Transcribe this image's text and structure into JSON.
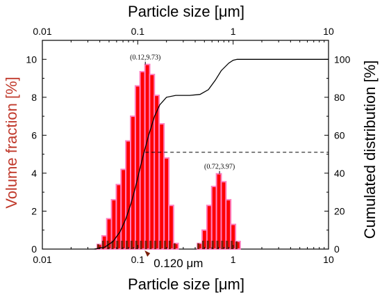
{
  "chart_data": {
    "type": "bar",
    "x_top_label": "Particle size [μm]",
    "x_bottom_label": "Particle size [μm]",
    "y_left_label": "Volume fraction [%]",
    "y_right_label": "Cumulated distribution [%]",
    "x_scale": "log",
    "x_range": [
      0.01,
      10
    ],
    "x_ticks": [
      0.01,
      0.1,
      1,
      10
    ],
    "x_tick_labels": [
      "0.01",
      "0.1",
      "1",
      "10"
    ],
    "y_left_range": [
      0,
      11
    ],
    "y_left_ticks": [
      0,
      2,
      4,
      6,
      8,
      10
    ],
    "y_right_range": [
      0,
      110
    ],
    "y_right_ticks": [
      0,
      20,
      40,
      60,
      80,
      100
    ],
    "grid": false,
    "bar_color": "#ff0000",
    "bar_edge_color": "#7a1f0a",
    "bars": [
      {
        "x": 0.0398,
        "y": 0.25
      },
      {
        "x": 0.0447,
        "y": 0.7
      },
      {
        "x": 0.0501,
        "y": 1.6
      },
      {
        "x": 0.0562,
        "y": 2.6
      },
      {
        "x": 0.0631,
        "y": 3.4
      },
      {
        "x": 0.0708,
        "y": 4.2
      },
      {
        "x": 0.0794,
        "y": 5.7
      },
      {
        "x": 0.0891,
        "y": 7.0
      },
      {
        "x": 0.1,
        "y": 8.6
      },
      {
        "x": 0.112,
        "y": 9.35
      },
      {
        "x": 0.126,
        "y": 9.73
      },
      {
        "x": 0.141,
        "y": 9.2
      },
      {
        "x": 0.158,
        "y": 8.1
      },
      {
        "x": 0.178,
        "y": 6.6
      },
      {
        "x": 0.2,
        "y": 4.8
      },
      {
        "x": 0.224,
        "y": 2.3
      },
      {
        "x": 0.251,
        "y": 0.3
      },
      {
        "x": 0.447,
        "y": 0.3
      },
      {
        "x": 0.501,
        "y": 1.0
      },
      {
        "x": 0.562,
        "y": 2.3
      },
      {
        "x": 0.631,
        "y": 3.3
      },
      {
        "x": 0.708,
        "y": 3.97
      },
      {
        "x": 0.794,
        "y": 3.55
      },
      {
        "x": 0.891,
        "y": 2.6
      },
      {
        "x": 1.0,
        "y": 1.3
      },
      {
        "x": 1.12,
        "y": 0.4
      }
    ],
    "cumulative": [
      {
        "x": 0.035,
        "y": 0
      },
      {
        "x": 0.045,
        "y": 1
      },
      {
        "x": 0.055,
        "y": 4
      },
      {
        "x": 0.065,
        "y": 9
      },
      {
        "x": 0.075,
        "y": 16
      },
      {
        "x": 0.085,
        "y": 24
      },
      {
        "x": 0.095,
        "y": 33
      },
      {
        "x": 0.105,
        "y": 42
      },
      {
        "x": 0.115,
        "y": 50
      },
      {
        "x": 0.13,
        "y": 60
      },
      {
        "x": 0.15,
        "y": 70
      },
      {
        "x": 0.17,
        "y": 76
      },
      {
        "x": 0.2,
        "y": 80
      },
      {
        "x": 0.25,
        "y": 81
      },
      {
        "x": 0.35,
        "y": 81
      },
      {
        "x": 0.45,
        "y": 81.5
      },
      {
        "x": 0.55,
        "y": 84
      },
      {
        "x": 0.65,
        "y": 89
      },
      {
        "x": 0.75,
        "y": 94
      },
      {
        "x": 0.9,
        "y": 98
      },
      {
        "x": 1.0,
        "y": 99.5
      },
      {
        "x": 1.1,
        "y": 100
      },
      {
        "x": 10,
        "y": 100
      }
    ],
    "median_line": {
      "x_from": 0.12,
      "x_to": 10,
      "y_right": 51
    },
    "annotations": [
      {
        "x": 0.12,
        "y": 9.73,
        "text": "(0.12,9.73)"
      },
      {
        "x": 0.72,
        "y": 3.97,
        "text": "(0.72,3.97)"
      }
    ],
    "d50": {
      "x": 0.12,
      "text": "0.120 μm"
    }
  }
}
